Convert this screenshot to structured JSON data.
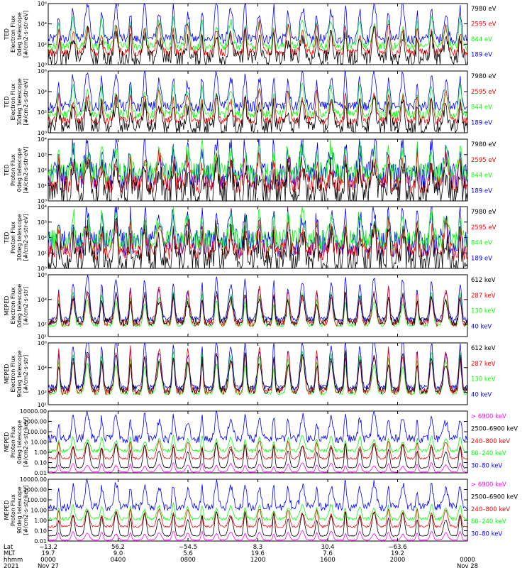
{
  "colors": {
    "blue": "#0000ff",
    "red": "#ff0000",
    "green": "#00ff00",
    "black": "#000000",
    "magenta": "#ff00ff"
  },
  "chart_data": [
    {
      "type": "line",
      "instrument": "TED",
      "ylabel": [
        "TED",
        "Electron Flux",
        "0deg telescope",
        "[#/cm2-s-str-eV]"
      ],
      "yscale": "log",
      "ylim_exp": [
        0,
        6
      ],
      "tick_labels": [
        "10⁰",
        "10²",
        "10⁴",
        "10⁶"
      ],
      "tick_exps": [
        0,
        2,
        4,
        6
      ],
      "legend": [
        {
          "label": "7980 eV",
          "color": "black"
        },
        {
          "label": "2595 eV",
          "color": "red"
        },
        {
          "label": "844 eV",
          "color": "green"
        },
        {
          "label": "189 eV",
          "color": "blue"
        }
      ]
    },
    {
      "type": "line",
      "instrument": "TED",
      "ylabel": [
        "TED",
        "Electron Flux",
        "30deg telescope",
        "[#/cm2-s-str-eV]"
      ],
      "yscale": "log",
      "ylim_exp": [
        0,
        6
      ],
      "tick_labels": [
        "10⁰",
        "10²",
        "10⁴",
        "10⁶"
      ],
      "tick_exps": [
        0,
        2,
        4,
        6
      ],
      "legend": [
        {
          "label": "7980 eV",
          "color": "black"
        },
        {
          "label": "2595 eV",
          "color": "red"
        },
        {
          "label": "844 eV",
          "color": "green"
        },
        {
          "label": "189 eV",
          "color": "blue"
        }
      ]
    },
    {
      "type": "line",
      "instrument": "TED",
      "ylabel": [
        "TED",
        "Proton Flux",
        "0deg telescope",
        "[#/cm2-s-str-eV]"
      ],
      "yscale": "log",
      "ylim_exp": [
        0,
        4
      ],
      "tick_labels": [
        "10⁰",
        "10¹",
        "10²",
        "10³",
        "10⁴"
      ],
      "tick_exps": [
        0,
        1,
        2,
        3,
        4
      ],
      "legend": [
        {
          "label": "7980 eV",
          "color": "black"
        },
        {
          "label": "2595 eV",
          "color": "red"
        },
        {
          "label": "844 eV",
          "color": "green"
        },
        {
          "label": "189 eV",
          "color": "blue"
        }
      ]
    },
    {
      "type": "line",
      "instrument": "TED",
      "ylabel": [
        "TED",
        "Proton Flux",
        "30deg telescope",
        "[#/cm2-s-str-eV]"
      ],
      "yscale": "log",
      "ylim_exp": [
        0,
        4
      ],
      "tick_labels": [
        "10⁰",
        "10¹",
        "10²",
        "10³",
        "10⁴"
      ],
      "tick_exps": [
        0,
        1,
        2,
        3,
        4
      ],
      "legend": [
        {
          "label": "7980 eV",
          "color": "black"
        },
        {
          "label": "2595 eV",
          "color": "red"
        },
        {
          "label": "844 eV",
          "color": "green"
        },
        {
          "label": "189 eV",
          "color": "blue"
        }
      ]
    },
    {
      "type": "line",
      "instrument": "MEPED",
      "ylabel": [
        "MEPED",
        "Electron Flux",
        "0deg telescope",
        "[#/cm2-s-str]"
      ],
      "yscale": "log",
      "ylim_exp": [
        1,
        6
      ],
      "tick_labels": [
        "10¹",
        "10²",
        "10⁴",
        "10⁶"
      ],
      "tick_exps": [
        1,
        2,
        4,
        6
      ],
      "legend": [
        {
          "label": "612 keV",
          "color": "black"
        },
        {
          "label": "287 keV",
          "color": "red"
        },
        {
          "label": "130 keV",
          "color": "green"
        },
        {
          "label": "40 keV",
          "color": "blue"
        }
      ]
    },
    {
      "type": "line",
      "instrument": "MEPED",
      "ylabel": [
        "MEPED",
        "Electron Flux",
        "90deg telescope",
        "[#/cm2-s-str]"
      ],
      "yscale": "log",
      "ylim_exp": [
        1,
        6
      ],
      "tick_labels": [
        "10¹",
        "10²",
        "10⁴",
        "10⁶"
      ],
      "tick_exps": [
        1,
        2,
        4,
        6
      ],
      "legend": [
        {
          "label": "612 keV",
          "color": "black"
        },
        {
          "label": "287 keV",
          "color": "red"
        },
        {
          "label": "130 keV",
          "color": "green"
        },
        {
          "label": "40 keV",
          "color": "blue"
        }
      ]
    },
    {
      "type": "line",
      "instrument": "MEPED",
      "ylabel": [
        "MEPED",
        "Proton Flux",
        "0deg telescope",
        "[#/cm2-s-str-keV]"
      ],
      "yscale": "log",
      "ylim_exp": [
        -2,
        4
      ],
      "tick_labels": [
        "0.01",
        "0.10",
        "1.00",
        "10.00",
        "100.00",
        "1000.00",
        "10000.00"
      ],
      "tick_exps": [
        -2,
        -1,
        0,
        1,
        2,
        3,
        4
      ],
      "legend": [
        {
          "label": "> 6900 keV",
          "color": "magenta"
        },
        {
          "label": "2500–6900 keV",
          "color": "black"
        },
        {
          "label": "240–800 keV",
          "color": "red"
        },
        {
          "label": "80–240 keV",
          "color": "green"
        },
        {
          "label": "30–80 keV",
          "color": "blue"
        }
      ]
    },
    {
      "type": "line",
      "instrument": "MEPED",
      "ylabel": [
        "MEPED",
        "Proton Flux",
        "90deg telescope",
        "[#/cm2-s-str-keV]"
      ],
      "yscale": "log",
      "ylim_exp": [
        -2,
        4
      ],
      "tick_labels": [
        "0.01",
        "0.10",
        "1.00",
        "10.00",
        "100.00",
        "1000.00",
        "10000.00"
      ],
      "tick_exps": [
        -2,
        -1,
        0,
        1,
        2,
        3,
        4
      ],
      "legend": [
        {
          "label": "> 6900 keV",
          "color": "magenta"
        },
        {
          "label": "2500–6900 keV",
          "color": "black"
        },
        {
          "label": "240–800 keV",
          "color": "red"
        },
        {
          "label": "80–240 keV",
          "color": "green"
        },
        {
          "label": "30–80 keV",
          "color": "blue"
        }
      ]
    }
  ],
  "xaxis": {
    "row_labels": [
      "Lat",
      "MLT",
      "hhmm",
      "2021"
    ],
    "ticks": [
      {
        "lat": "−13.2",
        "mlt": "19.7",
        "hhmm": "0000",
        "date": "Nov 27"
      },
      {
        "lat": "56.2",
        "mlt": "9.0",
        "hhmm": "0400",
        "date": ""
      },
      {
        "lat": "−54.5",
        "mlt": "5.6",
        "hhmm": "0800",
        "date": ""
      },
      {
        "lat": "8.3",
        "mlt": "19.6",
        "hhmm": "1200",
        "date": ""
      },
      {
        "lat": "30.4",
        "mlt": "7.6",
        "hhmm": "1600",
        "date": ""
      },
      {
        "lat": "−63.6",
        "mlt": "19.2",
        "hhmm": "2000",
        "date": ""
      },
      {
        "lat": "",
        "mlt": "",
        "hhmm": "0000",
        "date": "Nov 28"
      }
    ]
  }
}
